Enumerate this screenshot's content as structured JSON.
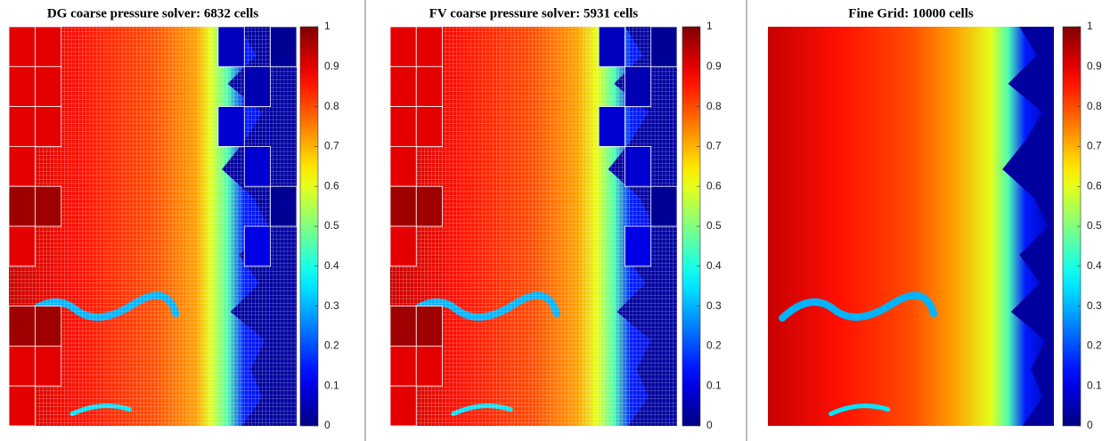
{
  "chart_data": [
    {
      "type": "heatmap",
      "title": "DG coarse pressure solver: 6832 cells",
      "colorbar": {
        "lim": [
          0,
          1
        ],
        "ticks": [
          0,
          0.1,
          0.2,
          0.3,
          0.4,
          0.5,
          0.6,
          0.7,
          0.8,
          0.9,
          1
        ]
      }
    },
    {
      "type": "heatmap",
      "title": "FV coarse pressure solver: 5931 cells",
      "colorbar": {
        "lim": [
          0,
          1
        ],
        "ticks": [
          0,
          0.1,
          0.2,
          0.3,
          0.4,
          0.5,
          0.6,
          0.7,
          0.8,
          0.9,
          1
        ]
      }
    },
    {
      "type": "heatmap",
      "title": "Fine Grid: 10000 cells",
      "colorbar": {
        "lim": [
          0,
          1
        ],
        "ticks": [
          0,
          0.1,
          0.2,
          0.3,
          0.4,
          0.5,
          0.6,
          0.7,
          0.8,
          0.9,
          1
        ]
      }
    }
  ]
}
